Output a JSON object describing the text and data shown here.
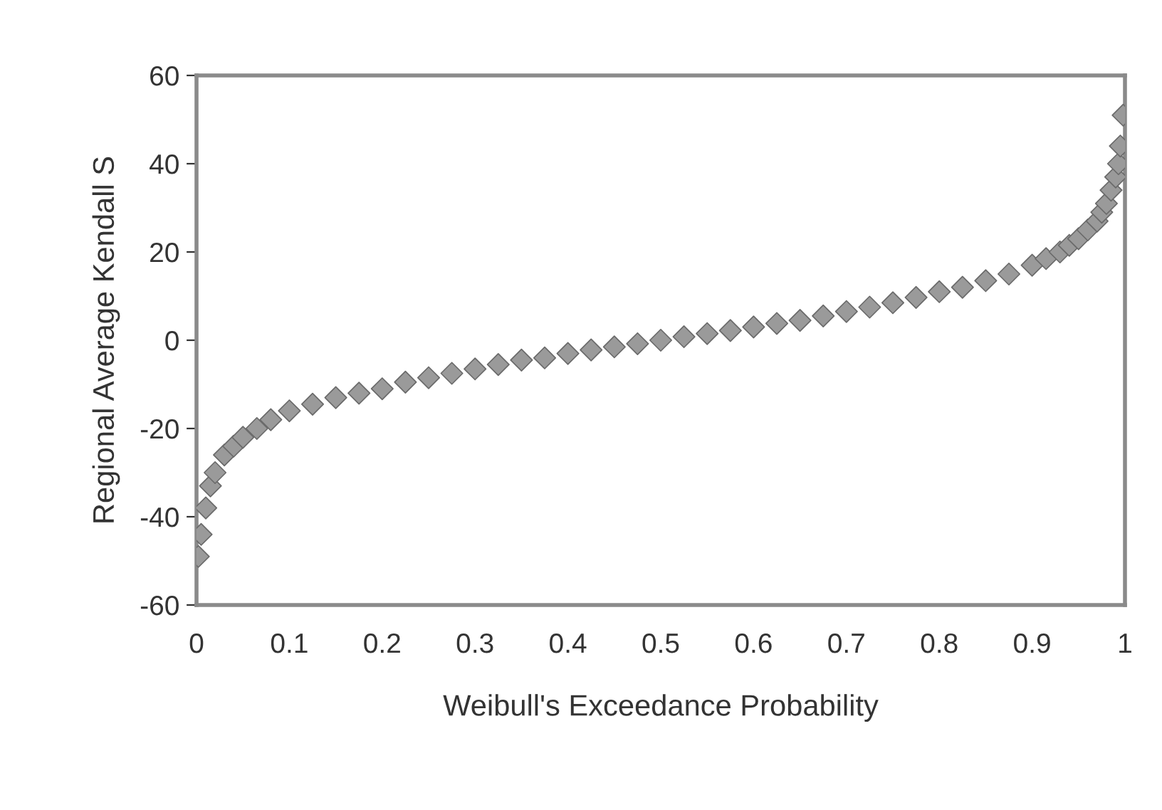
{
  "chart_data": {
    "type": "scatter",
    "xlabel": "Weibull's Exceedance Probability",
    "ylabel": "Regional Average Kendall S",
    "x": [
      0.002,
      0.005,
      0.01,
      0.015,
      0.02,
      0.03,
      0.04,
      0.05,
      0.065,
      0.08,
      0.1,
      0.125,
      0.15,
      0.175,
      0.2,
      0.225,
      0.25,
      0.275,
      0.3,
      0.325,
      0.35,
      0.375,
      0.4,
      0.425,
      0.45,
      0.475,
      0.5,
      0.525,
      0.55,
      0.575,
      0.6,
      0.625,
      0.65,
      0.675,
      0.7,
      0.725,
      0.75,
      0.775,
      0.8,
      0.825,
      0.85,
      0.875,
      0.9,
      0.915,
      0.93,
      0.94,
      0.95,
      0.96,
      0.97,
      0.975,
      0.98,
      0.985,
      0.99,
      0.993,
      0.995,
      0.998
    ],
    "values": [
      -49,
      -44,
      -38,
      -33,
      -30,
      -26,
      -24,
      -22,
      -20,
      -18,
      -16,
      -14.5,
      -13,
      -12,
      -11,
      -9.5,
      -8.5,
      -7.5,
      -6.5,
      -5.5,
      -4.5,
      -4,
      -3,
      -2.2,
      -1.5,
      -0.8,
      0,
      0.8,
      1.5,
      2.2,
      3,
      3.8,
      4.5,
      5.5,
      6.5,
      7.5,
      8.5,
      9.7,
      11,
      12,
      13.5,
      15,
      17,
      18.5,
      20,
      21.5,
      23,
      25,
      27,
      29,
      31,
      34,
      37,
      40,
      44,
      51
    ],
    "color": "#9a9a9a",
    "marker": "diamond",
    "grid": false,
    "xlim": [
      0,
      1
    ],
    "xticks": [
      0,
      0.1,
      0.2,
      0.3,
      0.4,
      0.5,
      0.6,
      0.7,
      0.8,
      0.9,
      1
    ],
    "ylim": [
      -60,
      60
    ],
    "yticks": [
      -60,
      -40,
      -20,
      0,
      20,
      40,
      60
    ]
  }
}
